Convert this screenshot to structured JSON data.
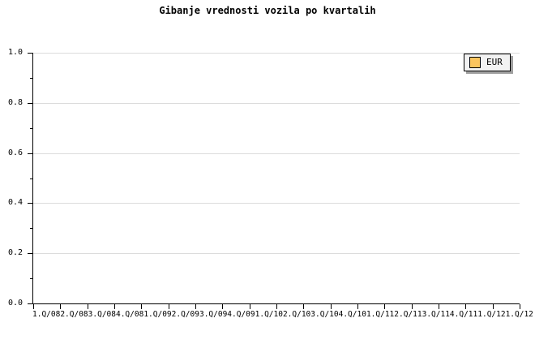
{
  "title": "Gibanje vrednosti vozila po kvartalih",
  "legend": {
    "label": "EUR",
    "swatch_color": "#fbc55e"
  },
  "colors": {
    "background": "#ffffff",
    "axis": "#000000",
    "grid": "#dcdcdc",
    "legend_bg": "#f2f2f2",
    "legend_shadow": "#a0a0a0",
    "series_eur": "#fbc55e"
  },
  "y_axis": {
    "tick_labels": [
      "1.0",
      "0.8",
      "0.6",
      "0.4",
      "0.2",
      "0.0"
    ]
  },
  "x_axis": {
    "tick_labels": [
      "1.Q/08",
      "2.Q/08",
      "3.Q/08",
      "4.Q/08",
      "1.Q/09",
      "2.Q/09",
      "3.Q/09",
      "4.Q/09",
      "1.Q/10",
      "2.Q/10",
      "3.Q/10",
      "4.Q/10",
      "1.Q/11",
      "2.Q/11",
      "3.Q/11",
      "4.Q/11",
      "1.Q/12",
      "1.Q/12"
    ]
  },
  "chart_data": {
    "type": "line",
    "title": "Gibanje vrednosti vozila po kvartalih",
    "categories": [
      "1.Q/08",
      "2.Q/08",
      "3.Q/08",
      "4.Q/08",
      "1.Q/09",
      "2.Q/09",
      "3.Q/09",
      "4.Q/09",
      "1.Q/10",
      "2.Q/10",
      "3.Q/10",
      "4.Q/10",
      "1.Q/11",
      "2.Q/11",
      "3.Q/11",
      "4.Q/11",
      "1.Q/12",
      "1.Q/12"
    ],
    "series": [
      {
        "name": "EUR",
        "color": "#fbc55e",
        "values": []
      }
    ],
    "xlabel": "",
    "ylabel": "",
    "ylim": [
      0.0,
      1.0
    ],
    "ytick_step": 0.2,
    "ytick_minor_step": 0.1,
    "yticks": [
      "0.0",
      "0.2",
      "0.4",
      "0.6",
      "0.8",
      "1.0"
    ],
    "grid": "horizontal major gridlines only",
    "legend_position": "top-right"
  }
}
